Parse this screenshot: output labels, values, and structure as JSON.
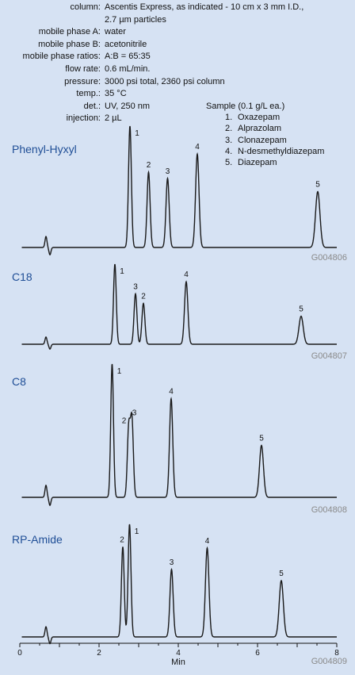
{
  "conditions": [
    {
      "key": "column:",
      "value": "Ascentis Express, as indicated - 10 cm x 3 mm I.D.,"
    },
    {
      "key": "",
      "value": "2.7 µm particles"
    },
    {
      "key": "mobile phase A:",
      "value": "water"
    },
    {
      "key": "mobile phase B:",
      "value": "acetonitrile"
    },
    {
      "key": "mobile phase ratios:",
      "value": "A:B = 65:35"
    },
    {
      "key": "flow rate:",
      "value": "0.6 mL/min."
    },
    {
      "key": "pressure:",
      "value": "3000 psi total, 2360 psi column"
    },
    {
      "key": "temp.:",
      "value": "35 °C"
    },
    {
      "key": "det.:",
      "value": "UV, 250 nm"
    },
    {
      "key": "injection:",
      "value": "2 µL"
    }
  ],
  "sample": {
    "title": "Sample (0.1 g/L ea.)",
    "items": [
      {
        "num": "1.",
        "name": "Oxazepam"
      },
      {
        "num": "2.",
        "name": "Alprazolam"
      },
      {
        "num": "3.",
        "name": "Clonazepam"
      },
      {
        "num": "4.",
        "name": "N-desmethyldiazepam"
      },
      {
        "num": "5.",
        "name": "Diazepam"
      }
    ]
  },
  "colors": {
    "panel_label": "#1f4e96",
    "trace": "#1a1a1a",
    "code": "#8a8a8a"
  },
  "chart_data": {
    "type": "line",
    "xlabel": "Min",
    "xlim": [
      0,
      8
    ],
    "xticks": [
      0,
      2,
      4,
      6,
      8
    ],
    "panels": [
      {
        "label": "Phenyl-Hyxyl",
        "code": "G004806",
        "peaks": [
          {
            "id": "1",
            "rt": 2.78,
            "height": 1.0
          },
          {
            "id": "2",
            "rt": 3.25,
            "height": 0.62
          },
          {
            "id": "3",
            "rt": 3.73,
            "height": 0.57
          },
          {
            "id": "4",
            "rt": 4.48,
            "height": 0.77
          },
          {
            "id": "5",
            "rt": 7.52,
            "height": 0.46
          }
        ]
      },
      {
        "label": "C18",
        "code": "G004807",
        "peaks": [
          {
            "id": "1",
            "rt": 2.4,
            "height": 1.0
          },
          {
            "id": "3",
            "rt": 2.92,
            "height": 0.63
          },
          {
            "id": "2",
            "rt": 3.12,
            "height": 0.51
          },
          {
            "id": "4",
            "rt": 4.2,
            "height": 0.78
          },
          {
            "id": "5",
            "rt": 7.1,
            "height": 0.35
          }
        ]
      },
      {
        "label": "C8",
        "code": "G004808",
        "peaks": [
          {
            "id": "1",
            "rt": 2.33,
            "height": 1.0
          },
          {
            "id": "2",
            "rt": 2.75,
            "height": 0.52
          },
          {
            "id": "3",
            "rt": 2.83,
            "height": 0.58
          },
          {
            "id": "4",
            "rt": 3.82,
            "height": 0.74
          },
          {
            "id": "5",
            "rt": 6.1,
            "height": 0.39
          }
        ]
      },
      {
        "label": "RP-Amide",
        "code": "G004809",
        "peaks": [
          {
            "id": "2",
            "rt": 2.6,
            "height": 0.8
          },
          {
            "id": "1",
            "rt": 2.77,
            "height": 1.0
          },
          {
            "id": "3",
            "rt": 3.83,
            "height": 0.6
          },
          {
            "id": "4",
            "rt": 4.73,
            "height": 0.79
          },
          {
            "id": "5",
            "rt": 6.6,
            "height": 0.5
          }
        ]
      }
    ]
  }
}
